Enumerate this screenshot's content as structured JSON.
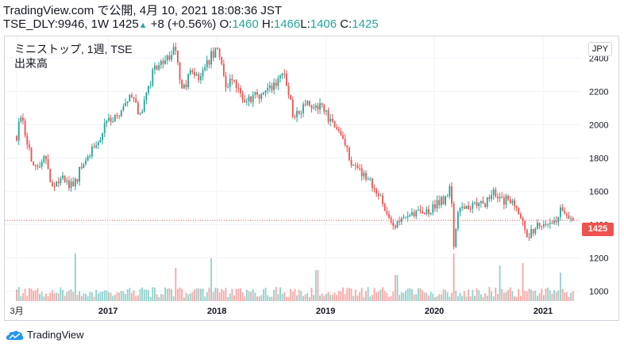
{
  "header": {
    "line1": "TradingView.com で公開, 4月 10, 2021 18:08:36 JST",
    "ticker": "TSE_DLY:9946, 1W",
    "last": "1425",
    "change": "+8 (+0.56%)",
    "o_label": "O:",
    "o_val": "1460",
    "h_label": "H:",
    "h_val": "1466",
    "l_label": "L:",
    "l_val": "1406",
    "c_label": "C:",
    "c_val": "1425"
  },
  "legend": {
    "symbol": "ミニストップ, 1週, TSE",
    "volume": "出来高"
  },
  "currency": "JPY",
  "price_badge": "1425",
  "branding": "TradingView",
  "colors": {
    "up": "#26a69a",
    "down": "#ef5350",
    "grid": "#f0f3fa",
    "axis_text": "#131722"
  },
  "chart_data": {
    "type": "candlestick",
    "frequency": "weekly",
    "y_axis": {
      "ticks": [
        1000,
        1200,
        1400,
        1600,
        1800,
        2000,
        2200,
        2400
      ],
      "range": [
        940,
        2530
      ],
      "scale": "linear"
    },
    "x_axis": {
      "ticks": [
        "3月",
        "2017",
        "2018",
        "2019",
        "2020",
        "2021"
      ]
    },
    "last_close": 1425,
    "anchors": [
      [
        2016.16,
        1930
      ],
      [
        2016.2,
        2060
      ],
      [
        2016.26,
        1880
      ],
      [
        2016.3,
        1760
      ],
      [
        2016.42,
        1790
      ],
      [
        2016.5,
        1600
      ],
      [
        2016.58,
        1690
      ],
      [
        2016.68,
        1620
      ],
      [
        2016.78,
        1790
      ],
      [
        2016.88,
        1860
      ],
      [
        2016.97,
        2000
      ],
      [
        2017.1,
        2060
      ],
      [
        2017.22,
        2170
      ],
      [
        2017.3,
        2050
      ],
      [
        2017.42,
        2330
      ],
      [
        2017.55,
        2410
      ],
      [
        2017.62,
        2460
      ],
      [
        2017.68,
        2200
      ],
      [
        2017.75,
        2300
      ],
      [
        2017.85,
        2280
      ],
      [
        2017.95,
        2420
      ],
      [
        2018.02,
        2460
      ],
      [
        2018.08,
        2200
      ],
      [
        2018.15,
        2280
      ],
      [
        2018.25,
        2120
      ],
      [
        2018.35,
        2170
      ],
      [
        2018.45,
        2200
      ],
      [
        2018.55,
        2250
      ],
      [
        2018.62,
        2300
      ],
      [
        2018.7,
        2060
      ],
      [
        2018.8,
        2110
      ],
      [
        2018.88,
        2130
      ],
      [
        2018.98,
        2100
      ],
      [
        2019.05,
        2000
      ],
      [
        2019.15,
        1940
      ],
      [
        2019.22,
        1790
      ],
      [
        2019.32,
        1720
      ],
      [
        2019.45,
        1620
      ],
      [
        2019.55,
        1500
      ],
      [
        2019.65,
        1390
      ],
      [
        2019.75,
        1440
      ],
      [
        2019.85,
        1470
      ],
      [
        2019.95,
        1480
      ],
      [
        2020.05,
        1530
      ],
      [
        2020.12,
        1560
      ],
      [
        2020.15,
        1640
      ],
      [
        2020.18,
        1250
      ],
      [
        2020.22,
        1480
      ],
      [
        2020.3,
        1510
      ],
      [
        2020.4,
        1510
      ],
      [
        2020.48,
        1530
      ],
      [
        2020.55,
        1590
      ],
      [
        2020.62,
        1540
      ],
      [
        2020.7,
        1550
      ],
      [
        2020.78,
        1480
      ],
      [
        2020.85,
        1300
      ],
      [
        2020.92,
        1380
      ],
      [
        2021.0,
        1400
      ],
      [
        2021.1,
        1420
      ],
      [
        2021.18,
        1500
      ],
      [
        2021.27,
        1425
      ]
    ],
    "volume_spikes": [
      [
        2016.7,
        1.0
      ],
      [
        2017.62,
        0.7
      ],
      [
        2017.95,
        0.9
      ],
      [
        2018.92,
        0.65
      ],
      [
        2019.65,
        0.55
      ],
      [
        2020.18,
        1.0
      ],
      [
        2020.6,
        0.75
      ],
      [
        2020.82,
        0.8
      ],
      [
        2021.16,
        0.6
      ]
    ]
  }
}
